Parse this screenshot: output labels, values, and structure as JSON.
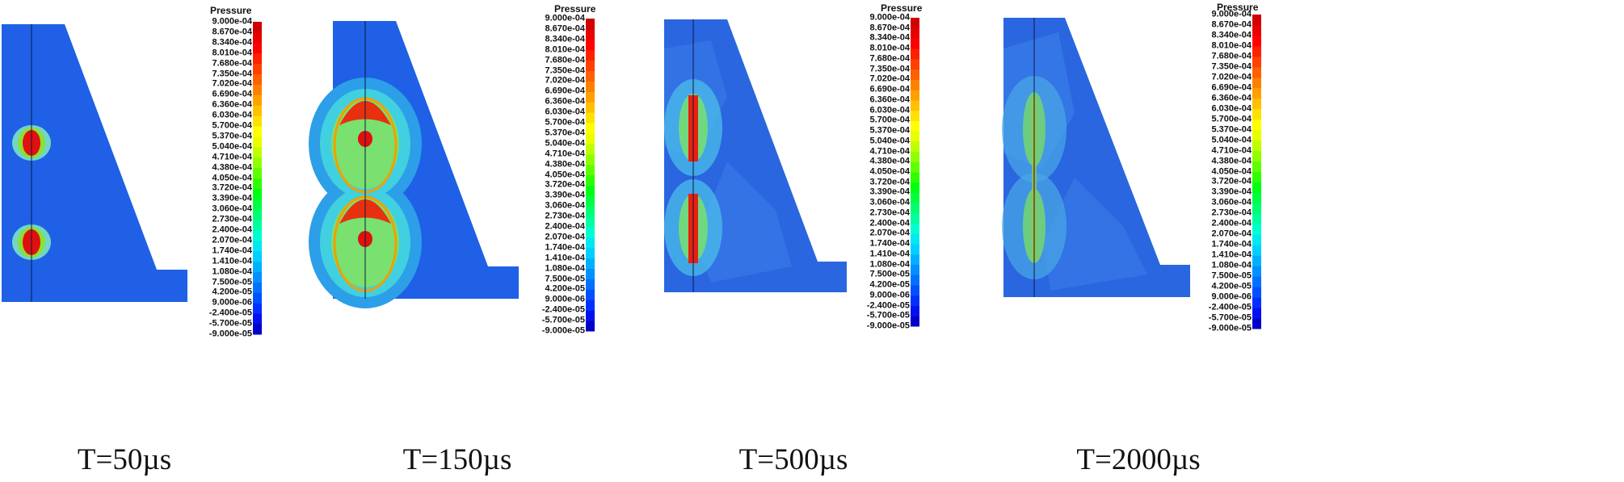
{
  "colorbar": {
    "title": "Pressure",
    "labels": [
      "9.000e-04",
      "8.670e-04",
      "8.340e-04",
      "8.010e-04",
      "7.680e-04",
      "7.350e-04",
      "7.020e-04",
      "6.690e-04",
      "6.360e-04",
      "6.030e-04",
      "5.700e-04",
      "5.370e-04",
      "5.040e-04",
      "4.710e-04",
      "4.380e-04",
      "4.050e-04",
      "3.720e-04",
      "3.390e-04",
      "3.060e-04",
      "2.730e-04",
      "2.400e-04",
      "2.070e-04",
      "1.740e-04",
      "1.410e-04",
      "1.080e-04",
      "7.500e-05",
      "4.200e-05",
      "9.000e-06",
      "-2.400e-05",
      "-5.700e-05",
      "-9.000e-05"
    ],
    "colors": [
      "#0000c8",
      "#0010f0",
      "#0030ff",
      "#0050ff",
      "#0070ff",
      "#0090ff",
      "#00b0ff",
      "#00d0ff",
      "#00e8f0",
      "#00ffd0",
      "#00ffa0",
      "#00ff70",
      "#00ff40",
      "#00ff10",
      "#30ff00",
      "#60ff00",
      "#90ff00",
      "#c0ff00",
      "#e8ff00",
      "#ffff00",
      "#ffe000",
      "#ffc000",
      "#ffa000",
      "#ff8000",
      "#ff6000",
      "#ff4000",
      "#ff2000",
      "#ff0000",
      "#e80000",
      "#d00000"
    ]
  },
  "panels": [
    {
      "caption": "T=50µs"
    },
    {
      "caption": "T=150µs"
    },
    {
      "caption": "T=500µs"
    },
    {
      "caption": "T=2000µs"
    }
  ]
}
